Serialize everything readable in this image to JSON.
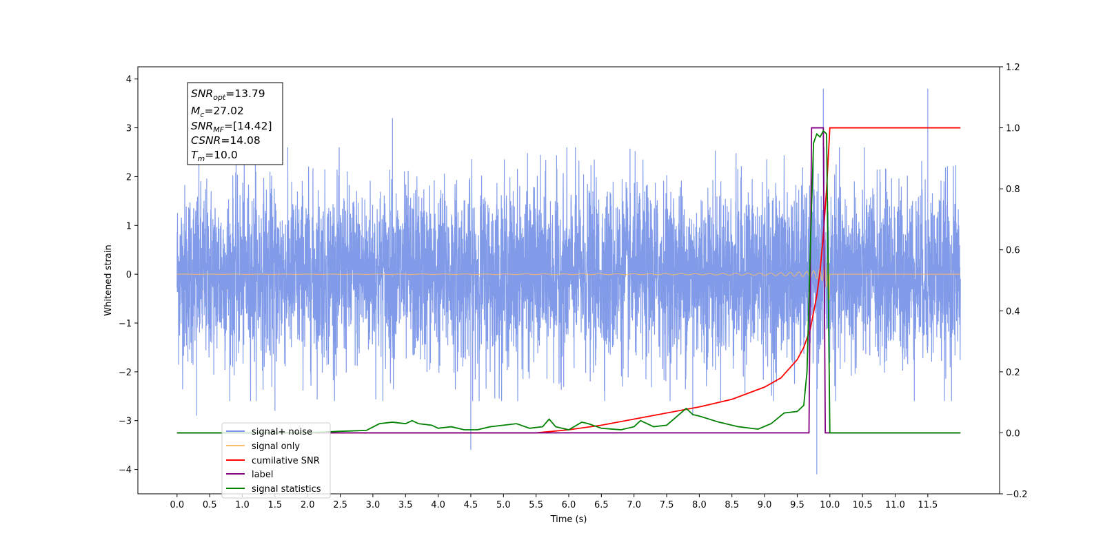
{
  "chart_data": {
    "type": "line",
    "xlabel": "Time (s)",
    "ylabel": "Whitened strain",
    "xlim": [
      -0.6,
      12.6
    ],
    "ylim": [
      -4.5,
      4.25
    ],
    "y2lim": [
      -0.2,
      1.2
    ],
    "grid": false,
    "legend_location": "lower-left",
    "x_ticks": [
      "0.0",
      "0.5",
      "1.0",
      "1.5",
      "2.0",
      "2.5",
      "3.0",
      "3.5",
      "4.0",
      "4.5",
      "5.0",
      "5.5",
      "6.0",
      "6.5",
      "7.0",
      "7.5",
      "8.0",
      "8.5",
      "9.0",
      "9.5",
      "10.0",
      "10.5",
      "11.0",
      "11.5"
    ],
    "y_ticks": [
      "4",
      "3",
      "2",
      "1",
      "0",
      "−1",
      "−2",
      "−3",
      "−4"
    ],
    "y2_ticks": [
      "1.2",
      "1.0",
      "0.8",
      "0.6",
      "0.4",
      "0.2",
      "0.0",
      "−0.2"
    ],
    "annotation": {
      "snr_opt": {
        "sym": "SNR",
        "sub": "opt",
        "val": "=13.79"
      },
      "mc": {
        "sym": "M",
        "sub": "c",
        "val": "=27.02"
      },
      "snr_mf": {
        "sym": "SNR",
        "sub": "MF",
        "val": "=[14.42]"
      },
      "csnr": {
        "sym": "CSNR",
        "sub": "",
        "val": "=14.08"
      },
      "tm": {
        "sym": "T",
        "sub": "m",
        "val": "=10.0"
      }
    },
    "series": [
      {
        "name": "signal+ noise",
        "axis": "left",
        "color": "#7a96e8",
        "description_noise_std": 0.9,
        "x_range": [
          0.0,
          12.0
        ],
        "spikes": [
          [
            0.3,
            -2.9
          ],
          [
            1.2,
            2.6
          ],
          [
            1.5,
            -2.8
          ],
          [
            3.3,
            3.2
          ],
          [
            4.5,
            -3.6
          ],
          [
            9.8,
            -4.1
          ],
          [
            9.9,
            3.8
          ],
          [
            11.5,
            3.8
          ],
          [
            7.9,
            -2.9
          ]
        ]
      },
      {
        "name": "signal only",
        "axis": "left",
        "color": "#ffbf66",
        "chirp_end_time": 10.0,
        "peak_amplitude": 1.0
      },
      {
        "name": "cumilative SNR",
        "axis": "right",
        "color": "#ff0000",
        "x": [
          0.0,
          5.5,
          6.0,
          6.5,
          7.0,
          7.5,
          8.0,
          8.5,
          9.0,
          9.25,
          9.5,
          9.6,
          9.7,
          9.8,
          9.85,
          9.9,
          9.95,
          10.0,
          12.0
        ],
        "values": [
          0.0,
          0.0,
          0.01,
          0.025,
          0.045,
          0.065,
          0.085,
          0.11,
          0.15,
          0.18,
          0.24,
          0.28,
          0.34,
          0.45,
          0.53,
          0.65,
          0.8,
          1.0,
          1.0
        ]
      },
      {
        "name": "label",
        "axis": "right",
        "color": "#800080",
        "x": [
          0.0,
          9.68,
          9.72,
          9.9,
          9.93,
          12.0
        ],
        "values": [
          0.0,
          0.0,
          1.0,
          1.0,
          0.0,
          0.0
        ]
      },
      {
        "name": "signal statistics",
        "axis": "right",
        "color": "#008000",
        "x": [
          0.0,
          1.0,
          2.0,
          2.5,
          2.9,
          3.1,
          3.3,
          3.5,
          3.6,
          3.7,
          3.9,
          4.0,
          4.2,
          4.4,
          4.6,
          4.8,
          5.0,
          5.2,
          5.4,
          5.6,
          5.7,
          5.8,
          6.0,
          6.2,
          6.3,
          6.5,
          6.8,
          7.0,
          7.1,
          7.3,
          7.5,
          7.8,
          7.9,
          8.0,
          8.3,
          8.6,
          8.9,
          9.1,
          9.3,
          9.5,
          9.6,
          9.65,
          9.7,
          9.75,
          9.8,
          9.85,
          9.9,
          9.95,
          10.0,
          10.05,
          10.1,
          12.0
        ],
        "values": [
          0.0,
          0.0,
          0.0,
          0.005,
          0.008,
          0.03,
          0.035,
          0.03,
          0.04,
          0.03,
          0.025,
          0.015,
          0.02,
          0.01,
          0.01,
          0.02,
          0.025,
          0.03,
          0.015,
          0.02,
          0.045,
          0.02,
          0.01,
          0.035,
          0.03,
          0.015,
          0.01,
          0.02,
          0.04,
          0.02,
          0.025,
          0.08,
          0.06,
          0.055,
          0.035,
          0.02,
          0.012,
          0.03,
          0.065,
          0.07,
          0.09,
          0.2,
          0.6,
          0.95,
          0.98,
          0.97,
          0.99,
          0.98,
          0.0,
          0.0,
          0.0,
          0.0
        ]
      }
    ]
  },
  "legend": {
    "items": [
      {
        "label": "signal+ noise",
        "color": "#7a96e8"
      },
      {
        "label": "signal only",
        "color": "#ffbf66"
      },
      {
        "label": "cumilative SNR",
        "color": "#ff0000"
      },
      {
        "label": "label",
        "color": "#800080"
      },
      {
        "label": "signal statistics",
        "color": "#008000"
      }
    ]
  }
}
